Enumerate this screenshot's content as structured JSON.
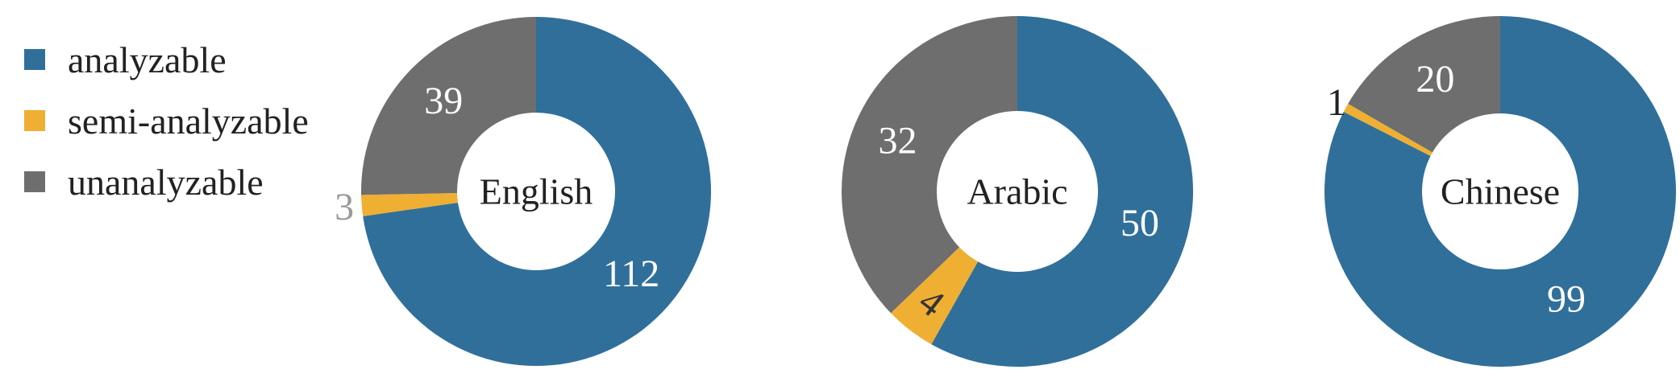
{
  "chart_data": [
    {
      "type": "pie",
      "center_label": "English",
      "slices": [
        {
          "name": "analyzable",
          "value": 112,
          "label": "112"
        },
        {
          "name": "semi-analyzable",
          "value": 3,
          "label": "3"
        },
        {
          "name": "unanalyzable",
          "value": 39,
          "label": "39"
        }
      ]
    },
    {
      "type": "pie",
      "center_label": "Arabic",
      "slices": [
        {
          "name": "analyzable",
          "value": 50,
          "label": "50"
        },
        {
          "name": "semi-analyzable",
          "value": 4,
          "label": "4"
        },
        {
          "name": "unanalyzable",
          "value": 32,
          "label": "32"
        }
      ]
    },
    {
      "type": "pie",
      "center_label": "Chinese",
      "slices": [
        {
          "name": "analyzable",
          "value": 99,
          "label": "99"
        },
        {
          "name": "semi-analyzable",
          "value": 1,
          "label": "1"
        },
        {
          "name": "unanalyzable",
          "value": 20,
          "label": "20"
        }
      ]
    }
  ],
  "legend": [
    {
      "name": "analyzable",
      "color": "#306f9a"
    },
    {
      "name": "semi-analyzable",
      "color": "#efaf33"
    },
    {
      "name": "unanalyzable",
      "color": "#6e6e6e"
    }
  ]
}
